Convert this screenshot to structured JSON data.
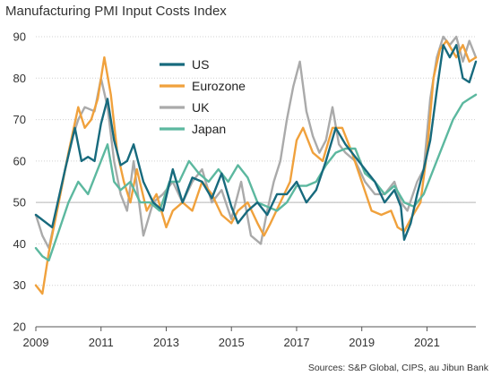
{
  "chart_data": {
    "type": "line",
    "title": "Manufacturing PMI Input Costs Index",
    "source": "Sources: S&P Global, CIPS, au Jibun Bank",
    "xlabel": "",
    "ylabel": "",
    "xlim": [
      2009,
      2022.5
    ],
    "ylim": [
      20,
      90
    ],
    "xticks": [
      2009,
      2011,
      2013,
      2015,
      2017,
      2019,
      2021
    ],
    "yticks": [
      20,
      30,
      40,
      50,
      60,
      70,
      80,
      90
    ],
    "grid": "horizontal dotted",
    "reference_line": 50,
    "legend": "inside-top-center",
    "series": [
      {
        "name": "US",
        "color": "#176a7d",
        "x": [
          2009.0,
          2009.5,
          2009.9,
          2010.2,
          2010.4,
          2010.6,
          2010.8,
          2011.0,
          2011.2,
          2011.4,
          2011.6,
          2011.8,
          2012.0,
          2012.3,
          2012.6,
          2012.9,
          2013.2,
          2013.5,
          2013.8,
          2014.1,
          2014.4,
          2014.7,
          2015.0,
          2015.2,
          2015.5,
          2015.8,
          2016.1,
          2016.4,
          2016.7,
          2017.0,
          2017.3,
          2017.6,
          2017.9,
          2018.2,
          2018.5,
          2018.8,
          2019.1,
          2019.4,
          2019.7,
          2020.0,
          2020.2,
          2020.3,
          2020.5,
          2020.7,
          2020.9,
          2021.1,
          2021.3,
          2021.5,
          2021.7,
          2021.9,
          2022.1,
          2022.3,
          2022.5
        ],
        "values": [
          47,
          44,
          58,
          68,
          60,
          61,
          60,
          69,
          75,
          65,
          59,
          60,
          64,
          55,
          50,
          48,
          58,
          50,
          56,
          55,
          51,
          57,
          49,
          45,
          48,
          50,
          47,
          52,
          52,
          55,
          50,
          53,
          60,
          68,
          64,
          61,
          58,
          55,
          50,
          53,
          49,
          41,
          45,
          52,
          58,
          65,
          77,
          88,
          85,
          88,
          80,
          79,
          84
        ]
      },
      {
        "name": "Eurozone",
        "color": "#f0a13c",
        "x": [
          2009.0,
          2009.2,
          2009.4,
          2009.7,
          2010.0,
          2010.3,
          2010.5,
          2010.7,
          2010.9,
          2011.1,
          2011.3,
          2011.5,
          2011.7,
          2011.9,
          2012.1,
          2012.4,
          2012.7,
          2013.0,
          2013.2,
          2013.5,
          2013.8,
          2014.1,
          2014.4,
          2014.7,
          2015.0,
          2015.2,
          2015.5,
          2015.8,
          2016.0,
          2016.2,
          2016.5,
          2016.8,
          2017.0,
          2017.2,
          2017.5,
          2017.8,
          2018.1,
          2018.4,
          2018.7,
          2019.0,
          2019.3,
          2019.6,
          2019.9,
          2020.1,
          2020.3,
          2020.5,
          2020.8,
          2021.0,
          2021.2,
          2021.4,
          2021.6,
          2021.9,
          2022.1,
          2022.3,
          2022.5
        ],
        "values": [
          30,
          28,
          38,
          50,
          62,
          73,
          68,
          70,
          75,
          85,
          76,
          62,
          55,
          50,
          58,
          48,
          52,
          44,
          48,
          50,
          48,
          55,
          52,
          47,
          45,
          48,
          50,
          45,
          42,
          45,
          50,
          55,
          65,
          68,
          62,
          60,
          68,
          68,
          62,
          55,
          48,
          47,
          48,
          44,
          43,
          46,
          50,
          62,
          80,
          87,
          89,
          85,
          88,
          84,
          85
        ]
      },
      {
        "name": "UK",
        "color": "#aaaaaa",
        "x": [
          2009.0,
          2009.2,
          2009.4,
          2009.7,
          2009.9,
          2010.1,
          2010.3,
          2010.5,
          2010.8,
          2011.0,
          2011.2,
          2011.4,
          2011.6,
          2011.8,
          2012.0,
          2012.3,
          2012.6,
          2012.9,
          2013.2,
          2013.5,
          2013.8,
          2014.1,
          2014.4,
          2014.7,
          2015.0,
          2015.3,
          2015.6,
          2015.9,
          2016.1,
          2016.3,
          2016.5,
          2016.7,
          2016.9,
          2017.1,
          2017.3,
          2017.5,
          2017.7,
          2017.9,
          2018.1,
          2018.3,
          2018.5,
          2018.8,
          2019.1,
          2019.4,
          2019.7,
          2020.0,
          2020.2,
          2020.4,
          2020.7,
          2020.9,
          2021.1,
          2021.3,
          2021.5,
          2021.7,
          2021.9,
          2022.1,
          2022.3,
          2022.5
        ],
        "values": [
          47,
          42,
          39,
          50,
          58,
          65,
          70,
          73,
          72,
          80,
          73,
          60,
          52,
          48,
          60,
          42,
          50,
          52,
          55,
          50,
          55,
          58,
          50,
          53,
          46,
          55,
          42,
          40,
          48,
          55,
          60,
          70,
          78,
          84,
          72,
          66,
          62,
          65,
          73,
          64,
          62,
          60,
          55,
          52,
          52,
          55,
          50,
          48,
          55,
          58,
          75,
          85,
          90,
          88,
          90,
          84,
          89,
          85
        ]
      },
      {
        "name": "Japan",
        "color": "#5cb89f",
        "x": [
          2009.0,
          2009.2,
          2009.4,
          2009.7,
          2010.0,
          2010.3,
          2010.6,
          2010.9,
          2011.2,
          2011.4,
          2011.6,
          2011.9,
          2012.2,
          2012.5,
          2012.8,
          2013.1,
          2013.4,
          2013.7,
          2014.0,
          2014.3,
          2014.6,
          2014.9,
          2015.2,
          2015.5,
          2015.8,
          2016.1,
          2016.4,
          2016.7,
          2017.0,
          2017.3,
          2017.6,
          2017.9,
          2018.2,
          2018.5,
          2018.8,
          2019.1,
          2019.4,
          2019.7,
          2020.0,
          2020.3,
          2020.6,
          2020.9,
          2021.2,
          2021.5,
          2021.8,
          2022.1,
          2022.3,
          2022.5
        ],
        "values": [
          39,
          37,
          36,
          43,
          50,
          55,
          52,
          58,
          64,
          55,
          53,
          55,
          50,
          50,
          48,
          55,
          55,
          60,
          57,
          55,
          58,
          55,
          59,
          56,
          50,
          49,
          48,
          50,
          54,
          54,
          55,
          59,
          62,
          63,
          63,
          57,
          55,
          52,
          54,
          50,
          49,
          52,
          58,
          64,
          70,
          74,
          75,
          76
        ]
      }
    ]
  }
}
